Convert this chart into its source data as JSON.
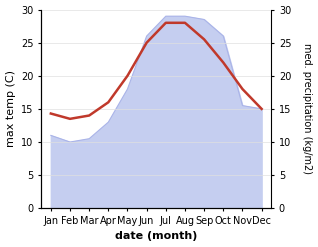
{
  "months": [
    "Jan",
    "Feb",
    "Mar",
    "Apr",
    "May",
    "Jun",
    "Jul",
    "Aug",
    "Sep",
    "Oct",
    "Nov",
    "Dec"
  ],
  "month_positions": [
    1,
    2,
    3,
    4,
    5,
    6,
    7,
    8,
    9,
    10,
    11,
    12
  ],
  "max_temp": [
    14.3,
    13.5,
    14.0,
    16.0,
    20.0,
    25.0,
    28.0,
    28.0,
    25.5,
    22.0,
    18.0,
    15.0
  ],
  "precipitation": [
    11.0,
    10.0,
    10.5,
    13.0,
    18.0,
    26.0,
    29.0,
    29.0,
    28.5,
    26.0,
    15.5,
    15.0
  ],
  "temp_color": "#c0392b",
  "precip_fill_color": "#c5cef0",
  "precip_edge_color": "#aab4e8",
  "temp_linewidth": 1.8,
  "xlabel": "date (month)",
  "ylabel_left": "max temp (C)",
  "ylabel_right": "med. precipitation (kg/m2)",
  "ylim_left": [
    0,
    30
  ],
  "ylim_right": [
    0,
    30
  ],
  "yticks": [
    0,
    5,
    10,
    15,
    20,
    25,
    30
  ],
  "bg_color": "#ffffff",
  "xlabel_fontsize": 8,
  "ylabel_fontsize": 8,
  "tick_fontsize": 7,
  "ylabel_right_fontsize": 7
}
